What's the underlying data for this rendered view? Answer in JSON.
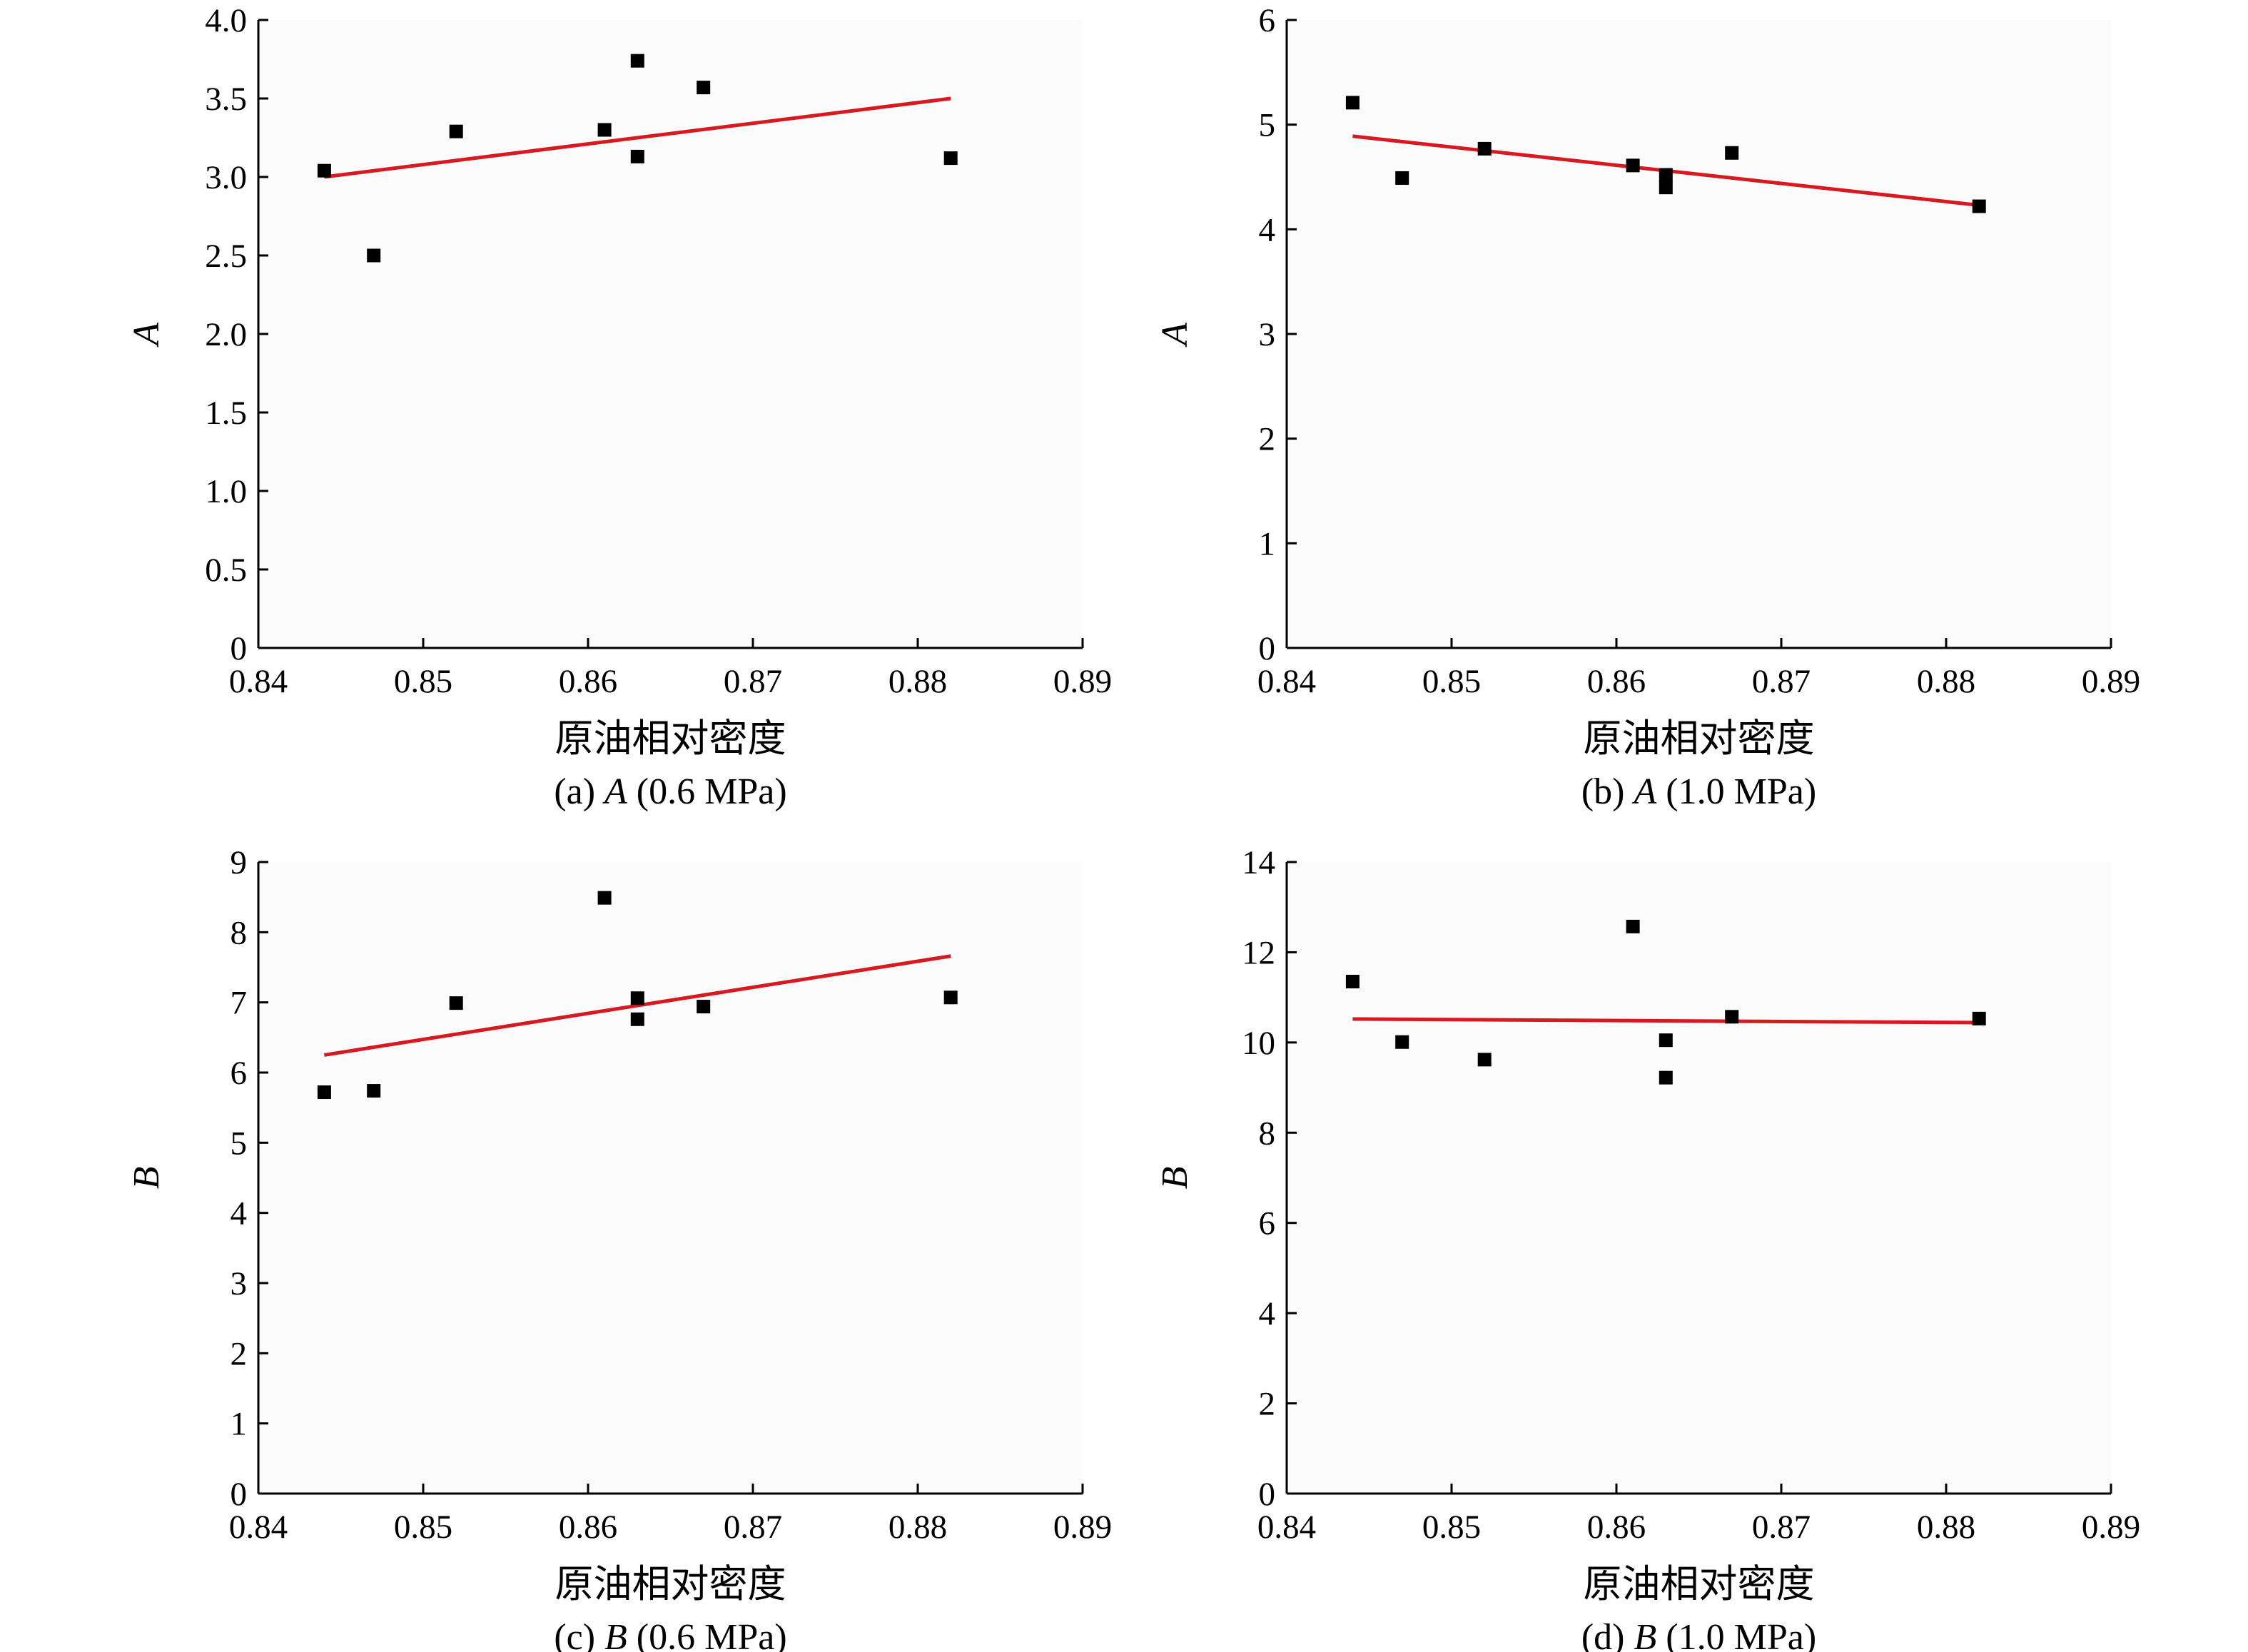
{
  "colors": {
    "fit_line": "#d71920",
    "marker": "#000000",
    "axis": "#000000"
  },
  "chart_data": [
    {
      "type": "scatter",
      "xlabel": "原油相对密度",
      "ylabel": "A",
      "caption": {
        "prefix": "(a) ",
        "symbol": "A",
        "suffix": " (0.6 MPa)"
      },
      "xlim": [
        0.84,
        0.89
      ],
      "ylim": [
        0,
        4.0
      ],
      "x_ticks": [
        0.84,
        0.85,
        0.86,
        0.87,
        0.88,
        0.89
      ],
      "x_tick_labels": [
        "0.84",
        "0.85",
        "0.86",
        "0.87",
        "0.88",
        "0.89"
      ],
      "y_ticks": [
        0,
        0.5,
        1.0,
        1.5,
        2.0,
        2.5,
        3.0,
        3.5,
        4.0
      ],
      "y_tick_labels": [
        "0",
        "0.5",
        "1.0",
        "1.5",
        "2.0",
        "2.5",
        "3.0",
        "3.5",
        "4.0"
      ],
      "grid": false,
      "points": [
        {
          "x": 0.844,
          "y": 3.04
        },
        {
          "x": 0.847,
          "y": 2.5
        },
        {
          "x": 0.852,
          "y": 3.29
        },
        {
          "x": 0.861,
          "y": 3.3
        },
        {
          "x": 0.863,
          "y": 3.74
        },
        {
          "x": 0.863,
          "y": 3.13
        },
        {
          "x": 0.867,
          "y": 3.57
        },
        {
          "x": 0.882,
          "y": 3.12
        }
      ],
      "fit_line": [
        {
          "x": 0.844,
          "y": 3.0
        },
        {
          "x": 0.882,
          "y": 3.5
        }
      ]
    },
    {
      "type": "scatter",
      "xlabel": "原油相对密度",
      "ylabel": "A",
      "caption": {
        "prefix": "(b) ",
        "symbol": "A",
        "suffix": " (1.0 MPa)"
      },
      "xlim": [
        0.84,
        0.89
      ],
      "ylim": [
        0,
        6
      ],
      "x_ticks": [
        0.84,
        0.85,
        0.86,
        0.87,
        0.88,
        0.89
      ],
      "x_tick_labels": [
        "0.84",
        "0.85",
        "0.86",
        "0.87",
        "0.88",
        "0.89"
      ],
      "y_ticks": [
        0,
        1,
        2,
        3,
        4,
        5,
        6
      ],
      "y_tick_labels": [
        "0",
        "1",
        "2",
        "3",
        "4",
        "5",
        "6"
      ],
      "grid": false,
      "points": [
        {
          "x": 0.844,
          "y": 5.21
        },
        {
          "x": 0.847,
          "y": 4.49
        },
        {
          "x": 0.852,
          "y": 4.77
        },
        {
          "x": 0.861,
          "y": 4.61
        },
        {
          "x": 0.863,
          "y": 4.52
        },
        {
          "x": 0.863,
          "y": 4.4
        },
        {
          "x": 0.867,
          "y": 4.73
        },
        {
          "x": 0.882,
          "y": 4.22
        }
      ],
      "fit_line": [
        {
          "x": 0.844,
          "y": 4.89
        },
        {
          "x": 0.882,
          "y": 4.23
        }
      ]
    },
    {
      "type": "scatter",
      "xlabel": "原油相对密度",
      "ylabel": "B",
      "caption": {
        "prefix": "(c) ",
        "symbol": "B",
        "suffix": " (0.6 MPa)"
      },
      "xlim": [
        0.84,
        0.89
      ],
      "ylim": [
        0,
        9
      ],
      "x_ticks": [
        0.84,
        0.85,
        0.86,
        0.87,
        0.88,
        0.89
      ],
      "x_tick_labels": [
        "0.84",
        "0.85",
        "0.86",
        "0.87",
        "0.88",
        "0.89"
      ],
      "y_ticks": [
        0,
        1,
        2,
        3,
        4,
        5,
        6,
        7,
        8,
        9
      ],
      "y_tick_labels": [
        "0",
        "1",
        "2",
        "3",
        "4",
        "5",
        "6",
        "7",
        "8",
        "9"
      ],
      "grid": false,
      "points": [
        {
          "x": 0.844,
          "y": 5.72
        },
        {
          "x": 0.847,
          "y": 5.74
        },
        {
          "x": 0.852,
          "y": 6.99
        },
        {
          "x": 0.861,
          "y": 8.49
        },
        {
          "x": 0.863,
          "y": 7.06
        },
        {
          "x": 0.863,
          "y": 6.76
        },
        {
          "x": 0.867,
          "y": 6.94
        },
        {
          "x": 0.882,
          "y": 7.07
        }
      ],
      "fit_line": [
        {
          "x": 0.844,
          "y": 6.25
        },
        {
          "x": 0.882,
          "y": 7.66
        }
      ]
    },
    {
      "type": "scatter",
      "xlabel": "原油相对密度",
      "ylabel": "B",
      "caption": {
        "prefix": "(d) ",
        "symbol": "B",
        "suffix": " (1.0 MPa)"
      },
      "xlim": [
        0.84,
        0.89
      ],
      "ylim": [
        0,
        14
      ],
      "x_ticks": [
        0.84,
        0.85,
        0.86,
        0.87,
        0.88,
        0.89
      ],
      "x_tick_labels": [
        "0.84",
        "0.85",
        "0.86",
        "0.87",
        "0.88",
        "0.89"
      ],
      "y_ticks": [
        0,
        2,
        4,
        6,
        8,
        10,
        12,
        14
      ],
      "y_tick_labels": [
        "0",
        "2",
        "4",
        "6",
        "8",
        "10",
        "12",
        "14"
      ],
      "grid": false,
      "points": [
        {
          "x": 0.844,
          "y": 11.35
        },
        {
          "x": 0.847,
          "y": 10.01
        },
        {
          "x": 0.852,
          "y": 9.62
        },
        {
          "x": 0.861,
          "y": 12.57
        },
        {
          "x": 0.863,
          "y": 10.05
        },
        {
          "x": 0.863,
          "y": 9.22
        },
        {
          "x": 0.867,
          "y": 10.57
        },
        {
          "x": 0.882,
          "y": 10.53
        }
      ],
      "fit_line": [
        {
          "x": 0.844,
          "y": 10.52
        },
        {
          "x": 0.882,
          "y": 10.44
        }
      ]
    }
  ]
}
